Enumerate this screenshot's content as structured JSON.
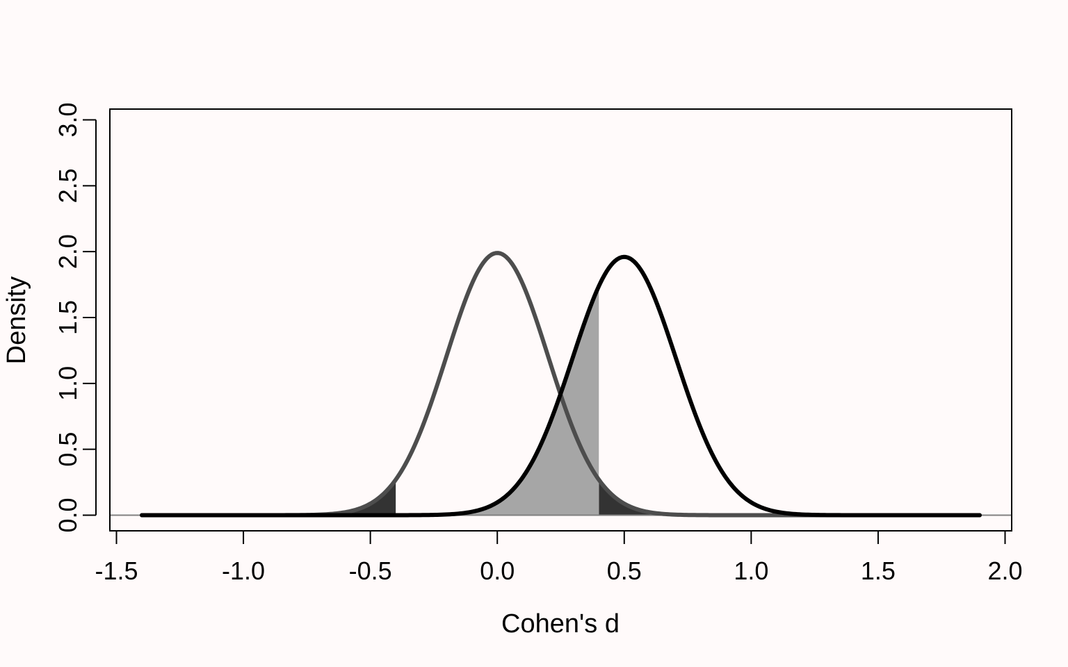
{
  "chart_data": {
    "type": "area",
    "title": "",
    "xlabel": "Cohen's d",
    "ylabel": "Density",
    "xlim": [
      -1.5,
      2.0
    ],
    "ylim": [
      0,
      3.0
    ],
    "x_ticks": [
      "-1.5",
      "-1.0",
      "-0.5",
      "0.0",
      "0.5",
      "1.0",
      "1.5",
      "2.0"
    ],
    "y_ticks": [
      "0.0",
      "0.5",
      "1.0",
      "1.5",
      "2.0",
      "2.5",
      "3.0"
    ],
    "grid": false,
    "x_range_drawn": [
      -1.4,
      1.9
    ],
    "critical_values": [
      -0.4,
      0.4
    ],
    "series": [
      {
        "mean": 0.0,
        "sd": 0.2,
        "peak_density": 1.99,
        "color": "#4d4d4d"
      },
      {
        "mean": 0.5,
        "sd": 0.204,
        "peak_density": 1.96,
        "color": "#000000"
      }
    ],
    "shaded_regions": [
      {
        "under": "null",
        "from": -1.4,
        "to": -0.4,
        "color": "#333333"
      },
      {
        "under": "null",
        "from": 0.4,
        "to": 1.9,
        "color": "#333333"
      },
      {
        "under": "alternative",
        "from": -1.4,
        "to": 0.4,
        "color": "#a6a6a6"
      }
    ],
    "colors": {
      "background": "#fffafa",
      "baseline": "#808080"
    }
  }
}
